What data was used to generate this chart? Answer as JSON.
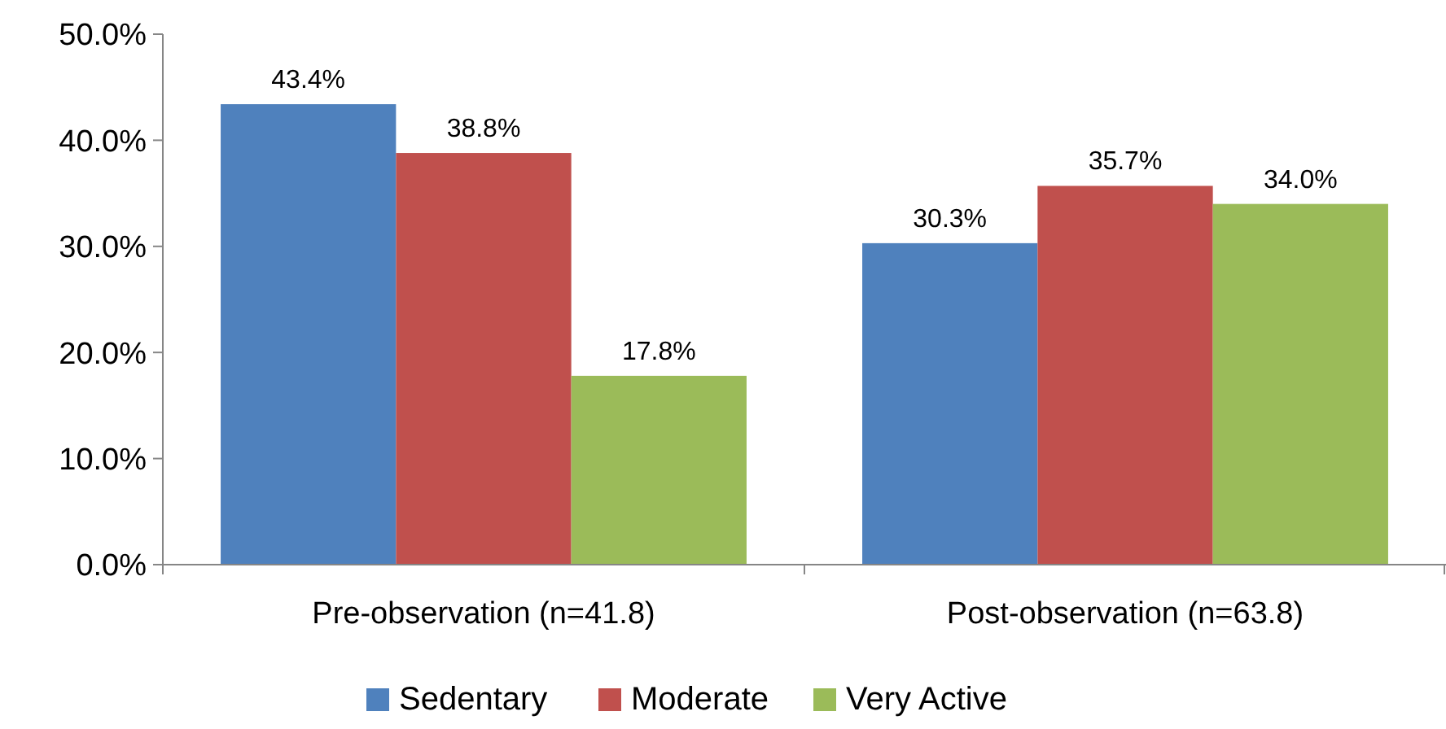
{
  "chart_data": {
    "type": "bar",
    "categories": [
      "Pre-observation (n=41.8)",
      "Post-observation (n=63.8)"
    ],
    "series": [
      {
        "name": "Sedentary",
        "color": "#4f81bd",
        "values": [
          43.4,
          30.3
        ],
        "value_labels": [
          "43.4%",
          "30.3%"
        ]
      },
      {
        "name": "Moderate",
        "color": "#c0504d",
        "values": [
          38.8,
          35.7
        ],
        "value_labels": [
          "38.8%",
          "35.7%"
        ]
      },
      {
        "name": "Very Active",
        "color": "#9bbb59",
        "values": [
          17.8,
          34.0
        ],
        "value_labels": [
          "17.8%",
          "34.0%"
        ]
      }
    ],
    "ylim": [
      0,
      50
    ],
    "yticks": [
      {
        "value": 0,
        "label": "0.0%"
      },
      {
        "value": 10,
        "label": "10.0%"
      },
      {
        "value": 20,
        "label": "20.0%"
      },
      {
        "value": 30,
        "label": "30.0%"
      },
      {
        "value": 40,
        "label": "40.0%"
      },
      {
        "value": 50,
        "label": "50.0%"
      }
    ],
    "grid": false,
    "legend": "bottom"
  }
}
